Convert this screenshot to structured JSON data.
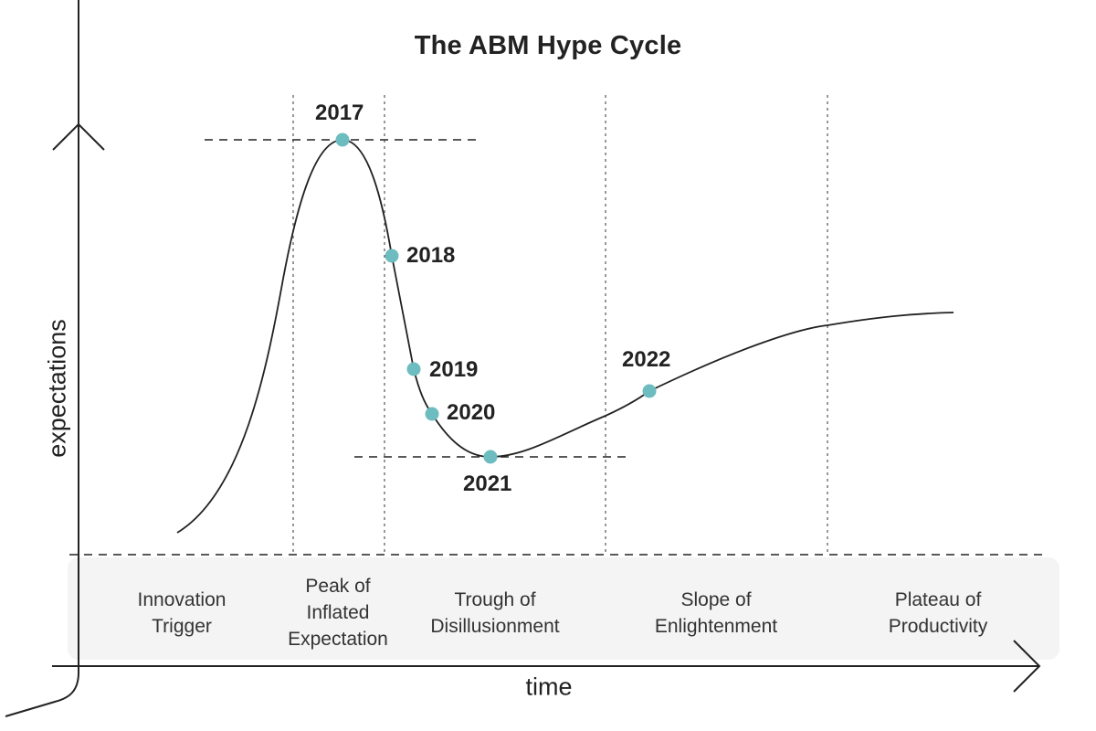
{
  "title": "The ABM Hype Cycle",
  "axes": {
    "x_label": "time",
    "y_label": "expectations"
  },
  "colors": {
    "curve": "#222222",
    "marker": "#6dbcc0",
    "band": "#f4f4f4",
    "guide": "#555555"
  },
  "phases": [
    {
      "id": "innovation-trigger",
      "label": "Innovation\nTrigger"
    },
    {
      "id": "peak",
      "label": "Peak of\nInflated\nExpectation"
    },
    {
      "id": "trough",
      "label": "Trough of\nDisillusionment"
    },
    {
      "id": "slope",
      "label": "Slope of\nEnlightenment"
    },
    {
      "id": "plateau",
      "label": "Plateau of\nProductivity"
    }
  ],
  "milestones": [
    {
      "year": "2017",
      "phase": "Peak of Inflated Expectation"
    },
    {
      "year": "2018",
      "phase": "Trough of Disillusionment"
    },
    {
      "year": "2019",
      "phase": "Trough of Disillusionment"
    },
    {
      "year": "2020",
      "phase": "Trough of Disillusionment"
    },
    {
      "year": "2021",
      "phase": "Trough of Disillusionment"
    },
    {
      "year": "2022",
      "phase": "Slope of Enlightenment"
    }
  ]
}
